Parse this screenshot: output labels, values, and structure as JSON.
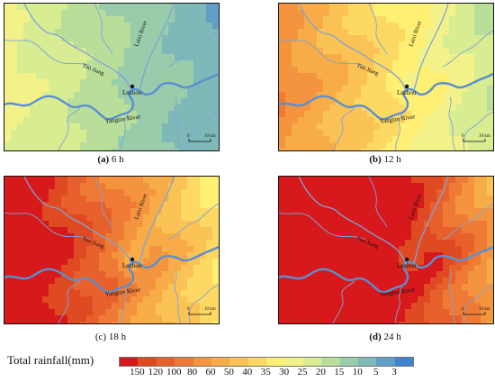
{
  "panels": [
    {
      "id": "a",
      "letter": "(a)",
      "duration": "6 h",
      "intensity": 0.08
    },
    {
      "id": "b",
      "letter": "(b)",
      "duration": "12 h",
      "intensity": 0.34
    },
    {
      "id": "c",
      "letter": "(c)",
      "duration": "18 h",
      "intensity": 0.62
    },
    {
      "id": "d",
      "letter": "(d)",
      "duration": "24 h",
      "intensity": 0.9
    }
  ],
  "map_labels": {
    "city": "Luzhou",
    "river_main": "Yangtze River",
    "river_tuo": "Tuo Jiang",
    "river_lai": "Laixi River",
    "scale_zero": "0",
    "scale_distance": "10 km"
  },
  "legend": {
    "title": "Total rainfall(mm)",
    "ticks": [
      "150",
      "120",
      "100",
      "80",
      "60",
      "50",
      "40",
      "35",
      "30",
      "25",
      "20",
      "15",
      "10",
      "5",
      "3"
    ],
    "colors": [
      "#d7191c",
      "#e04a22",
      "#e8612c",
      "#ef7a36",
      "#f4943e",
      "#f8ac48",
      "#fbc355",
      "#fdd964",
      "#ffef73",
      "#f3f28a",
      "#d8ec92",
      "#b9de9a",
      "#98ccab",
      "#7fb8b8",
      "#5f9ec6",
      "#3f83cf"
    ]
  },
  "colors": {
    "river": "#5b8fd0",
    "river_small": "#7fa3d6"
  }
}
